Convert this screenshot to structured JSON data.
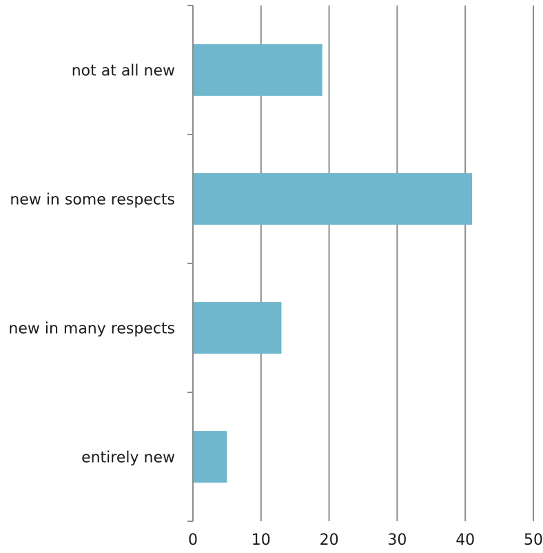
{
  "chart_data": {
    "type": "bar",
    "orientation": "horizontal",
    "title": "",
    "xlabel": "",
    "ylabel": "",
    "categories": [
      "not at all new",
      "new in some respects",
      "new in many respects",
      "entirely new"
    ],
    "values": [
      19,
      41,
      13,
      5
    ],
    "xlim": [
      0,
      50
    ],
    "x_ticks": [
      "0",
      "10",
      "20",
      "30",
      "40",
      "50"
    ],
    "grid": true,
    "legend": "none",
    "bar_color": "#6fb7cd",
    "grid_color": "#8c8c8c"
  }
}
